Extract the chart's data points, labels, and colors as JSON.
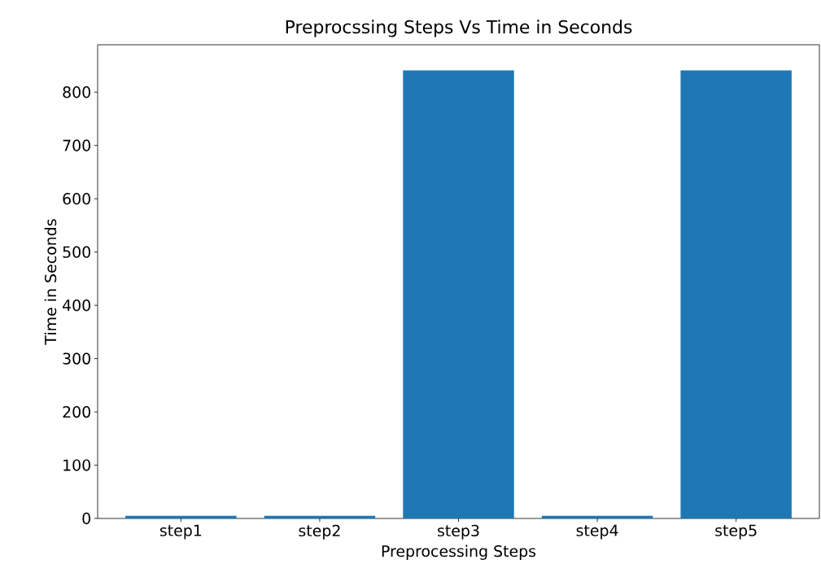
{
  "chart_data": {
    "type": "bar",
    "title": "Preprocssing Steps Vs Time in Seconds",
    "xlabel": "Preprocessing Steps",
    "ylabel": "Time in Seconds",
    "categories": [
      "step1",
      "step2",
      "step3",
      "step4",
      "step5"
    ],
    "values": [
      5,
      5,
      841,
      5,
      841
    ],
    "color": "#1f77b4",
    "ylim": [
      0,
      889
    ],
    "yticks": [
      0,
      100,
      200,
      300,
      400,
      500,
      600,
      700,
      800
    ],
    "grid": false
  }
}
